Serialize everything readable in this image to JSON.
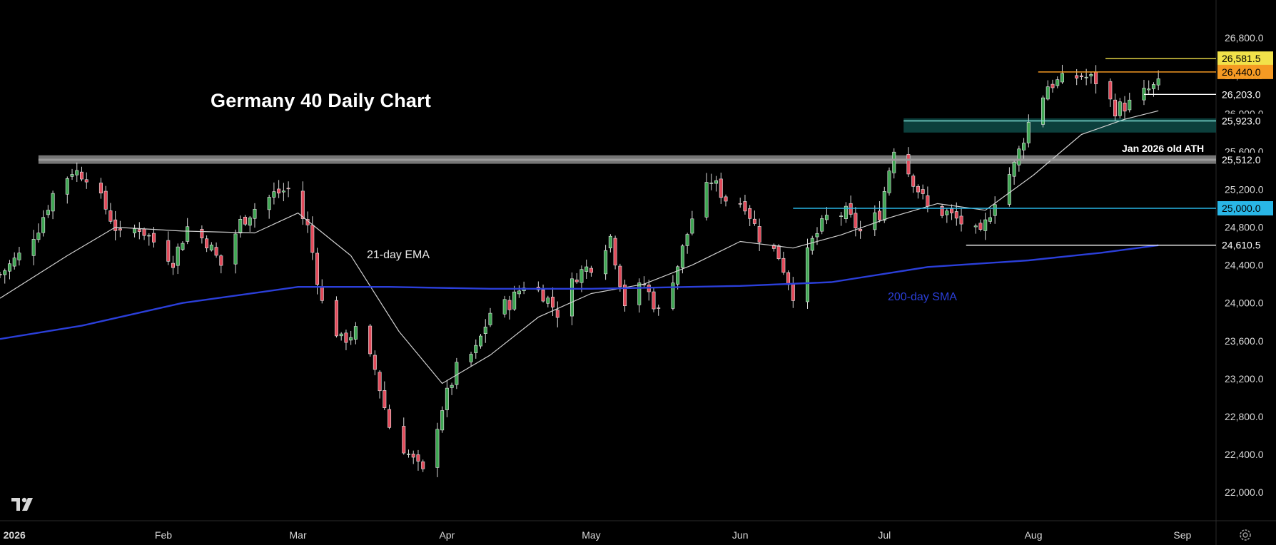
{
  "chart_data": {
    "type": "candlestick",
    "title": "Germany 40 Daily Chart",
    "ylim": [
      21700,
      27200
    ],
    "y_ticks": [
      22000,
      22400,
      22800,
      23200,
      23600,
      24000,
      24400,
      24800,
      25200,
      25600,
      26000,
      26400,
      26800
    ],
    "y_tick_labels": [
      "22,000.0",
      "22,400.0",
      "22,800.0",
      "23,200.0",
      "23,600.0",
      "24,000.0",
      "24,400.0",
      "24,800.0",
      "25,200.0",
      "25,600.0",
      "26,000.0",
      "26,400.0",
      "26,800.0"
    ],
    "x_range": [
      "2025-12-29",
      "2026-09-08"
    ],
    "x_ticks": [
      {
        "date": "2026-01-01",
        "label": "2026"
      },
      {
        "date": "2026-02-01",
        "label": "Feb"
      },
      {
        "date": "2026-03-01",
        "label": "Mar"
      },
      {
        "date": "2026-04-01",
        "label": "Apr"
      },
      {
        "date": "2026-05-01",
        "label": "May"
      },
      {
        "date": "2026-06-01",
        "label": "Jun"
      },
      {
        "date": "2026-07-01",
        "label": "Jul"
      },
      {
        "date": "2026-08-01",
        "label": "Aug"
      },
      {
        "date": "2026-09-01",
        "label": "Sep"
      }
    ],
    "close_series": [
      [
        "2025-12-29",
        24300
      ],
      [
        "2026-01-02",
        24500
      ],
      [
        "2026-01-06",
        24800
      ],
      [
        "2026-01-09",
        25150
      ],
      [
        "2026-01-13",
        25400
      ],
      [
        "2026-01-16",
        25350
      ],
      [
        "2026-01-20",
        25000
      ],
      [
        "2026-01-23",
        24700
      ],
      [
        "2026-01-27",
        24800
      ],
      [
        "2026-01-30",
        24650
      ],
      [
        "2026-02-03",
        24450
      ],
      [
        "2026-02-06",
        24800
      ],
      [
        "2026-02-10",
        24650
      ],
      [
        "2026-02-13",
        24400
      ],
      [
        "2026-02-17",
        24850
      ],
      [
        "2026-02-20",
        25000
      ],
      [
        "2026-02-24",
        25150
      ],
      [
        "2026-02-27",
        25200
      ],
      [
        "2026-03-03",
        24800
      ],
      [
        "2026-03-06",
        24000
      ],
      [
        "2026-03-10",
        23600
      ],
      [
        "2026-03-13",
        23700
      ],
      [
        "2026-03-17",
        23300
      ],
      [
        "2026-03-20",
        22700
      ],
      [
        "2026-03-24",
        22400
      ],
      [
        "2026-03-27",
        22200
      ],
      [
        "2026-03-31",
        22900
      ],
      [
        "2026-04-03",
        23300
      ],
      [
        "2026-04-07",
        23500
      ],
      [
        "2026-04-10",
        23900
      ],
      [
        "2026-04-14",
        24000
      ],
      [
        "2026-04-17",
        24200
      ],
      [
        "2026-04-21",
        24100
      ],
      [
        "2026-04-24",
        23900
      ],
      [
        "2026-04-28",
        24300
      ],
      [
        "2026-05-01",
        24400
      ],
      [
        "2026-05-05",
        24700
      ],
      [
        "2026-05-08",
        24000
      ],
      [
        "2026-05-12",
        24200
      ],
      [
        "2026-05-15",
        23900
      ],
      [
        "2026-05-19",
        24400
      ],
      [
        "2026-05-22",
        24900
      ],
      [
        "2026-05-26",
        25300
      ],
      [
        "2026-05-29",
        25100
      ],
      [
        "2026-06-02",
        25050
      ],
      [
        "2026-06-05",
        24700
      ],
      [
        "2026-06-09",
        24500
      ],
      [
        "2026-06-12",
        24100
      ],
      [
        "2026-06-16",
        24650
      ],
      [
        "2026-06-19",
        24900
      ],
      [
        "2026-06-23",
        24950
      ],
      [
        "2026-06-26",
        24750
      ],
      [
        "2026-06-30",
        24950
      ],
      [
        "2026-07-03",
        25650
      ],
      [
        "2026-07-07",
        25300
      ],
      [
        "2026-07-10",
        25000
      ],
      [
        "2026-07-14",
        24950
      ],
      [
        "2026-07-17",
        24850
      ],
      [
        "2026-07-21",
        24700
      ],
      [
        "2026-07-24",
        25100
      ],
      [
        "2026-07-28",
        25450
      ],
      [
        "2026-07-31",
        25900
      ],
      [
        "2026-08-04",
        26300
      ],
      [
        "2026-08-07",
        26350
      ],
      [
        "2026-08-11",
        26400
      ],
      [
        "2026-08-14",
        26350
      ],
      [
        "2026-08-18",
        26050
      ],
      [
        "2026-08-21",
        26100
      ],
      [
        "2026-08-25",
        26250
      ],
      [
        "2026-08-27",
        26300
      ]
    ],
    "indicators": [
      {
        "name": "21-day EMA",
        "color": "#cfcfcf",
        "points": [
          [
            "2025-12-29",
            24050
          ],
          [
            "2026-01-12",
            24500
          ],
          [
            "2026-01-22",
            24800
          ],
          [
            "2026-02-05",
            24760
          ],
          [
            "2026-02-20",
            24740
          ],
          [
            "2026-03-01",
            24950
          ],
          [
            "2026-03-12",
            24500
          ],
          [
            "2026-03-22",
            23700
          ],
          [
            "2026-03-31",
            23150
          ],
          [
            "2026-04-10",
            23450
          ],
          [
            "2026-04-20",
            23850
          ],
          [
            "2026-05-01",
            24100
          ],
          [
            "2026-05-12",
            24200
          ],
          [
            "2026-05-22",
            24400
          ],
          [
            "2026-06-01",
            24650
          ],
          [
            "2026-06-12",
            24580
          ],
          [
            "2026-06-22",
            24720
          ],
          [
            "2026-07-02",
            24900
          ],
          [
            "2026-07-12",
            25050
          ],
          [
            "2026-07-22",
            24980
          ],
          [
            "2026-08-01",
            25350
          ],
          [
            "2026-08-11",
            25780
          ],
          [
            "2026-08-20",
            25940
          ],
          [
            "2026-08-27",
            26030
          ]
        ]
      },
      {
        "name": "200-day SMA",
        "color": "#2b3fd9",
        "points": [
          [
            "2025-12-29",
            23620
          ],
          [
            "2026-01-15",
            23760
          ],
          [
            "2026-02-05",
            24000
          ],
          [
            "2026-03-01",
            24170
          ],
          [
            "2026-03-20",
            24170
          ],
          [
            "2026-04-10",
            24150
          ],
          [
            "2026-05-01",
            24150
          ],
          [
            "2026-06-01",
            24180
          ],
          [
            "2026-06-20",
            24220
          ],
          [
            "2026-07-10",
            24380
          ],
          [
            "2026-07-31",
            24450
          ],
          [
            "2026-08-15",
            24530
          ],
          [
            "2026-08-27",
            24610
          ]
        ]
      }
    ],
    "annotations": [
      {
        "text": "21-day EMA"
      },
      {
        "text": "200-day SMA"
      },
      {
        "text": "Jan 2026 old ATH"
      }
    ],
    "zones": [
      {
        "name": "old-ath-zone",
        "from": 25470,
        "to": 25560,
        "start": "2026-01-06",
        "color": "#8a8a8a"
      },
      {
        "name": "support-zone",
        "from": 25800,
        "to": 25950,
        "start": "2026-07-05",
        "color": "#0e4a47"
      }
    ],
    "levels": [
      {
        "value": 26581.5,
        "label": "26,581.5",
        "color": "#f2e24a",
        "text_color": "#000000",
        "start": "2026-08-16"
      },
      {
        "value": 26440.0,
        "label": "26,440.0",
        "color": "#f59a23",
        "text_color": "#000000",
        "start": "2026-08-02"
      },
      {
        "value": 26203.0,
        "label": "26,203.0",
        "color": "#ffffff",
        "text_color": "#ffffff",
        "start": "2026-08-24"
      },
      {
        "value": 25923.0,
        "label": "25,923.0",
        "color": "#7fe0d6",
        "text_color": "#ffffff",
        "start": "2026-07-05"
      },
      {
        "value": 25512.0,
        "label": "25,512.0",
        "color": "#9a9a9a",
        "text_color": "#ffffff",
        "start": "2026-01-06"
      },
      {
        "value": 25000.0,
        "label": "25,000.0",
        "color": "#29b6e6",
        "text_color": "#000000",
        "start": "2026-06-12"
      },
      {
        "value": 24610.5,
        "label": "24,610.5",
        "color": "#ffffff",
        "text_color": "#ffffff",
        "start": "2026-07-18"
      }
    ],
    "up_color": "#3fa653",
    "down_color": "#e24b5b",
    "grid": false,
    "legend": "none"
  },
  "icons": {
    "logo": "tradingview-logo-icon",
    "settings": "gear-icon"
  }
}
